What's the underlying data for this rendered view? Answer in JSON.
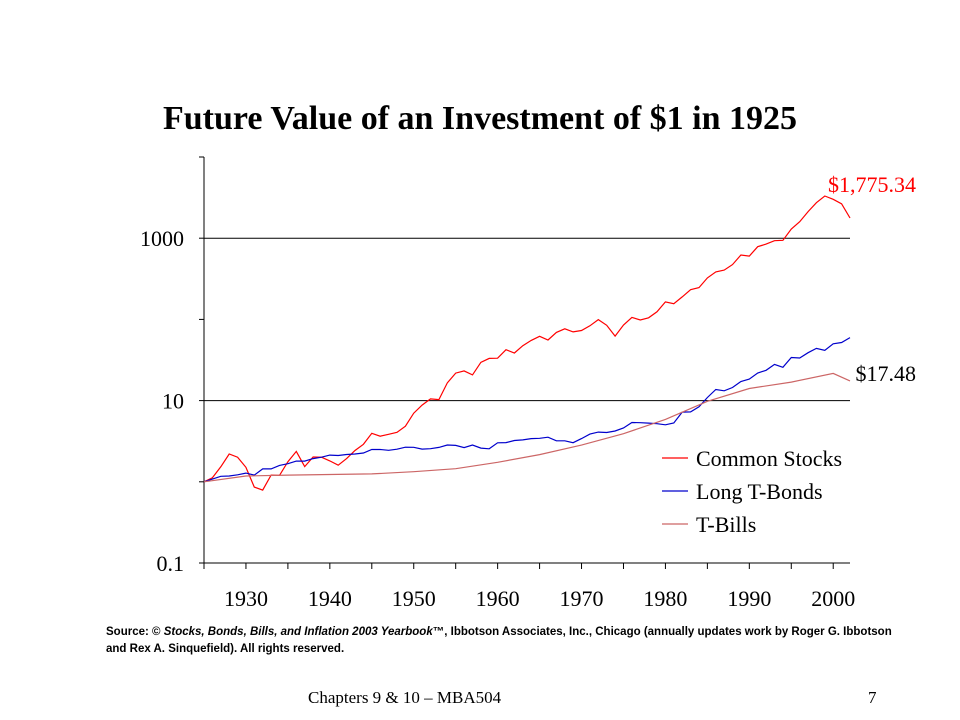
{
  "slide": {
    "title": "Future Value of an Investment of $1 in 1925",
    "source_prefix": "Source: © ",
    "source_italic": "Stocks, Bonds, Bills, and Inflation 2003 Yearbook",
    "source_rest": "™, Ibbotson Associates, Inc., Chicago (annually updates work by Roger G. Ibbotson and Rex A. Sinquefield). All rights reserved.",
    "footer_left": "Chapters 9 & 10 – MBA504",
    "footer_right": "7"
  },
  "chart_data": {
    "type": "line",
    "title": "Future Value of an Investment of $1 in 1925",
    "xlabel": "",
    "ylabel": "",
    "yscale": "log",
    "xlim": [
      1925,
      2002
    ],
    "ylim": [
      0.1,
      10000
    ],
    "x_ticks": [
      1930,
      1940,
      1950,
      1960,
      1970,
      1980,
      1990,
      2000
    ],
    "y_ticks": [
      {
        "value": 0.1,
        "label": "0.1"
      },
      {
        "value": 10,
        "label": "10"
      },
      {
        "value": 1000,
        "label": "1000"
      }
    ],
    "grid": "horizontal at labeled y ticks",
    "legend_position": "bottom-right",
    "annotations": [
      {
        "text": "$1,775.34",
        "color": "#ff0000"
      },
      {
        "text": "$17.48",
        "color": "#000000"
      }
    ],
    "series": [
      {
        "name": "Common Stocks",
        "color": "#ff0000",
        "x": [
          1925,
          1926,
          1927,
          1928,
          1929,
          1930,
          1931,
          1932,
          1933,
          1934,
          1935,
          1936,
          1937,
          1938,
          1939,
          1940,
          1941,
          1942,
          1943,
          1944,
          1945,
          1946,
          1947,
          1948,
          1949,
          1950,
          1951,
          1952,
          1953,
          1954,
          1955,
          1956,
          1957,
          1958,
          1959,
          1960,
          1961,
          1962,
          1963,
          1964,
          1965,
          1966,
          1967,
          1968,
          1969,
          1970,
          1971,
          1972,
          1973,
          1974,
          1975,
          1976,
          1977,
          1978,
          1979,
          1980,
          1981,
          1982,
          1983,
          1984,
          1985,
          1986,
          1987,
          1988,
          1989,
          1990,
          1991,
          1992,
          1993,
          1994,
          1995,
          1996,
          1997,
          1998,
          1999,
          2000,
          2001,
          2002
        ],
        "values": [
          1.0,
          1.12,
          1.53,
          2.2,
          2.01,
          1.51,
          0.86,
          0.79,
          1.21,
          1.2,
          1.77,
          2.37,
          1.54,
          2.02,
          2.01,
          1.81,
          1.6,
          1.93,
          2.43,
          2.9,
          3.96,
          3.64,
          3.85,
          4.07,
          4.84,
          7.0,
          8.8,
          10.5,
          10.3,
          16.5,
          21.8,
          23.2,
          20.7,
          29.6,
          33.1,
          33.3,
          42.3,
          38.6,
          47.4,
          55.2,
          62.0,
          55.8,
          69.1,
          76.7,
          70.2,
          73.0,
          83.5,
          99.3,
          84.7,
          62.3,
          85.4,
          105.8,
          98.2,
          104.6,
          123.9,
          164.1,
          156.0,
          189.4,
          232.1,
          246.6,
          324.6,
          385.0,
          405.1,
          472.6,
          621.3,
          602.4,
          785.7,
          845.6,
          930.4,
          942.5,
          1296.7,
          1594.4,
          2126.6,
          2735.4,
          3311.9,
          3010.3,
          2652.5,
          1775.34
        ]
      },
      {
        "name": "Long T-Bonds",
        "color": "#0000cc",
        "x": [
          1925,
          1926,
          1927,
          1928,
          1929,
          1930,
          1931,
          1932,
          1933,
          1934,
          1935,
          1936,
          1937,
          1938,
          1939,
          1940,
          1941,
          1942,
          1943,
          1944,
          1945,
          1946,
          1947,
          1948,
          1949,
          1950,
          1951,
          1952,
          1953,
          1954,
          1955,
          1956,
          1957,
          1958,
          1959,
          1960,
          1961,
          1962,
          1963,
          1964,
          1965,
          1966,
          1967,
          1968,
          1969,
          1970,
          1971,
          1972,
          1973,
          1974,
          1975,
          1976,
          1977,
          1978,
          1979,
          1980,
          1981,
          1982,
          1983,
          1984,
          1985,
          1986,
          1987,
          1988,
          1989,
          1990,
          1991,
          1992,
          1993,
          1994,
          1995,
          1996,
          1997,
          1998,
          1999,
          2000,
          2001,
          2002
        ],
        "values": [
          1.0,
          1.08,
          1.17,
          1.18,
          1.22,
          1.28,
          1.21,
          1.44,
          1.44,
          1.59,
          1.67,
          1.8,
          1.8,
          1.93,
          2.01,
          2.13,
          2.11,
          2.17,
          2.2,
          2.26,
          2.5,
          2.5,
          2.44,
          2.52,
          2.67,
          2.66,
          2.53,
          2.56,
          2.65,
          2.84,
          2.81,
          2.64,
          2.84,
          2.6,
          2.55,
          3.02,
          3.04,
          3.23,
          3.28,
          3.4,
          3.43,
          3.54,
          3.2,
          3.2,
          3.03,
          3.4,
          3.87,
          4.09,
          4.05,
          4.22,
          4.6,
          5.38,
          5.34,
          5.28,
          5.19,
          5.04,
          5.3,
          7.21,
          7.26,
          8.38,
          10.91,
          13.69,
          13.2,
          14.5,
          17.2,
          18.4,
          21.9,
          23.6,
          27.9,
          25.7,
          33.9,
          33.5,
          38.9,
          44.0,
          41.6,
          50.1,
          52.0,
          59.7
        ]
      },
      {
        "name": "T-Bills",
        "color": "#cc6666",
        "x": [
          1925,
          1930,
          1935,
          1940,
          1945,
          1950,
          1955,
          1960,
          1965,
          1970,
          1975,
          1980,
          1985,
          1990,
          1995,
          2000,
          2002
        ],
        "values": [
          1.0,
          1.18,
          1.21,
          1.23,
          1.25,
          1.33,
          1.45,
          1.74,
          2.16,
          2.83,
          3.91,
          5.87,
          9.8,
          14.1,
          16.9,
          21.6,
          17.48
        ]
      }
    ]
  }
}
